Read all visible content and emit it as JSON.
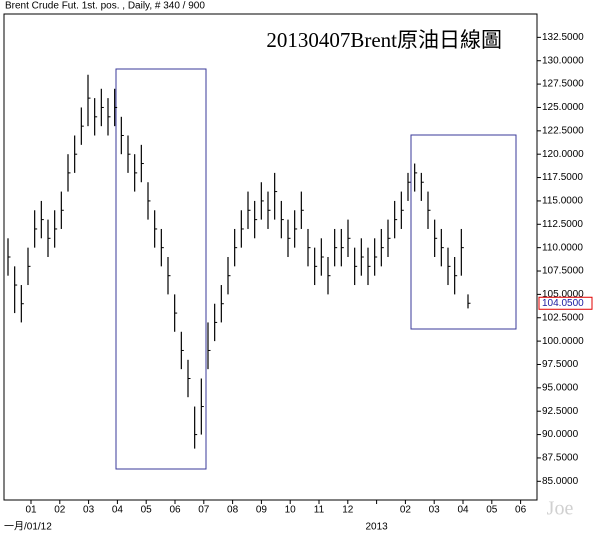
{
  "chart_data": {
    "type": "ohlc",
    "header": "Brent Crude Fut. 1st. pos. , Daily, # 340 / 900",
    "title": "20130407Brent原油日線圖",
    "watermark": "Joe",
    "color": "#000000",
    "high": [
      111,
      108,
      106,
      110,
      114,
      115,
      113,
      114,
      116,
      120,
      122,
      125,
      128.5,
      126,
      127,
      126,
      127,
      124,
      122,
      120,
      121,
      117,
      114,
      112,
      109,
      105,
      101,
      98,
      93,
      96,
      102,
      104,
      106,
      109,
      112,
      114,
      116,
      115,
      117,
      116,
      118,
      115,
      113,
      114,
      116,
      112,
      110,
      111,
      109,
      112,
      112,
      113,
      110,
      111,
      110,
      111,
      112,
      113,
      115,
      116,
      118,
      119,
      118,
      116,
      113,
      112,
      110,
      109,
      112,
      105
    ],
    "low": [
      107,
      103,
      102,
      106,
      110,
      111,
      109,
      110,
      112,
      116,
      118,
      121,
      123,
      122,
      123,
      122,
      123,
      120,
      118,
      116,
      117,
      113,
      110,
      108,
      105,
      101,
      97,
      94,
      88.5,
      90,
      97,
      100,
      102,
      105,
      108,
      110,
      112,
      111,
      113,
      112,
      113,
      111,
      109,
      110,
      112,
      108,
      106,
      107,
      105,
      108,
      108,
      109,
      106,
      107,
      106,
      107,
      108,
      109,
      111,
      112,
      115,
      116,
      115,
      112,
      109,
      108,
      106,
      105,
      107,
      103.5
    ],
    "close": [
      109,
      106,
      104,
      108,
      112,
      113,
      111,
      112,
      114,
      118,
      120,
      123,
      126,
      124,
      125,
      124,
      125,
      122,
      120,
      118,
      119,
      115,
      112,
      110,
      107,
      103,
      99,
      96,
      90,
      93,
      99,
      102,
      104,
      107,
      110,
      112,
      114,
      113,
      115,
      114,
      116,
      113,
      111,
      112,
      114,
      110,
      108,
      109,
      107,
      110,
      110,
      111,
      108,
      109,
      108,
      109,
      110,
      111,
      113,
      114,
      117,
      118,
      117,
      114,
      111,
      110,
      108,
      107,
      110,
      104.05
    ],
    "ylim": [
      83,
      135
    ],
    "yticks": [
      {
        "value": 85,
        "label": "85.0000"
      },
      {
        "value": 87.5,
        "label": "87.5000"
      },
      {
        "value": 90,
        "label": "90.0000"
      },
      {
        "value": 92.5,
        "label": "92.5000"
      },
      {
        "value": 95,
        "label": "95.0000"
      },
      {
        "value": 97.5,
        "label": "97.5000"
      },
      {
        "value": 100,
        "label": "100.0000"
      },
      {
        "value": 102.5,
        "label": "102.5000"
      },
      {
        "value": 105,
        "label": "105.0000"
      },
      {
        "value": 107.5,
        "label": "107.5000"
      },
      {
        "value": 110,
        "label": "110.0000"
      },
      {
        "value": 112.5,
        "label": "112.5000"
      },
      {
        "value": 115,
        "label": "115.0000"
      },
      {
        "value": 117.5,
        "label": "117.5000"
      },
      {
        "value": 120,
        "label": "120.0000"
      },
      {
        "value": 122.5,
        "label": "122.5000"
      },
      {
        "value": 125,
        "label": "125.0000"
      },
      {
        "value": 127.5,
        "label": "127.5000"
      },
      {
        "value": 130,
        "label": "130.0000"
      },
      {
        "value": 132.5,
        "label": "132.5000"
      }
    ],
    "last_price": {
      "value": 104.05,
      "label": "104.0500"
    },
    "month_labels": [
      "01",
      "02",
      "03",
      "04",
      "05",
      "06",
      "07",
      "08",
      "09",
      "10",
      "11",
      "12",
      null,
      "02",
      "03",
      "04",
      "05",
      "06"
    ],
    "start_label": "一月/01/12",
    "year_label": "2013"
  }
}
